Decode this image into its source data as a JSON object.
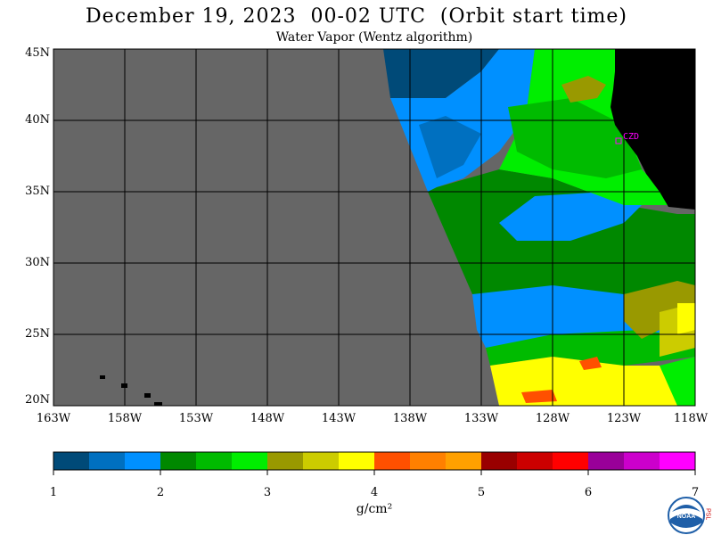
{
  "title": "December 19, 2023  00-02 UTC  (Orbit start time)",
  "subtitle": "Water Vapor (Wentz algorithm)",
  "lat_labels": [
    "45N",
    "40N",
    "35N",
    "30N",
    "25N",
    "20N"
  ],
  "lon_labels": [
    "163W",
    "158W",
    "153W",
    "148W",
    "143W",
    "138W",
    "133W",
    "128W",
    "123W",
    "118W"
  ],
  "station_label": "CZD",
  "colorbar": {
    "ticks": [
      "1",
      "2",
      "3",
      "4",
      "5",
      "6",
      "7"
    ],
    "units": "g/cm²",
    "colors": [
      "#004a78",
      "#0070c0",
      "#0090ff",
      "#008800",
      "#00bb00",
      "#00ee00",
      "#999900",
      "#cccc00",
      "#ffff00",
      "#ff5000",
      "#ff8000",
      "#ffa000",
      "#990000",
      "#cc0000",
      "#ff0000",
      "#990099",
      "#cc00cc",
      "#ff00ff"
    ]
  },
  "colors": {
    "no_data": "#666666",
    "land": "#000000",
    "grid": "#000000",
    "station": "#ff00ff"
  },
  "logo": {
    "text": "NOAA",
    "side_text": "PSL"
  }
}
